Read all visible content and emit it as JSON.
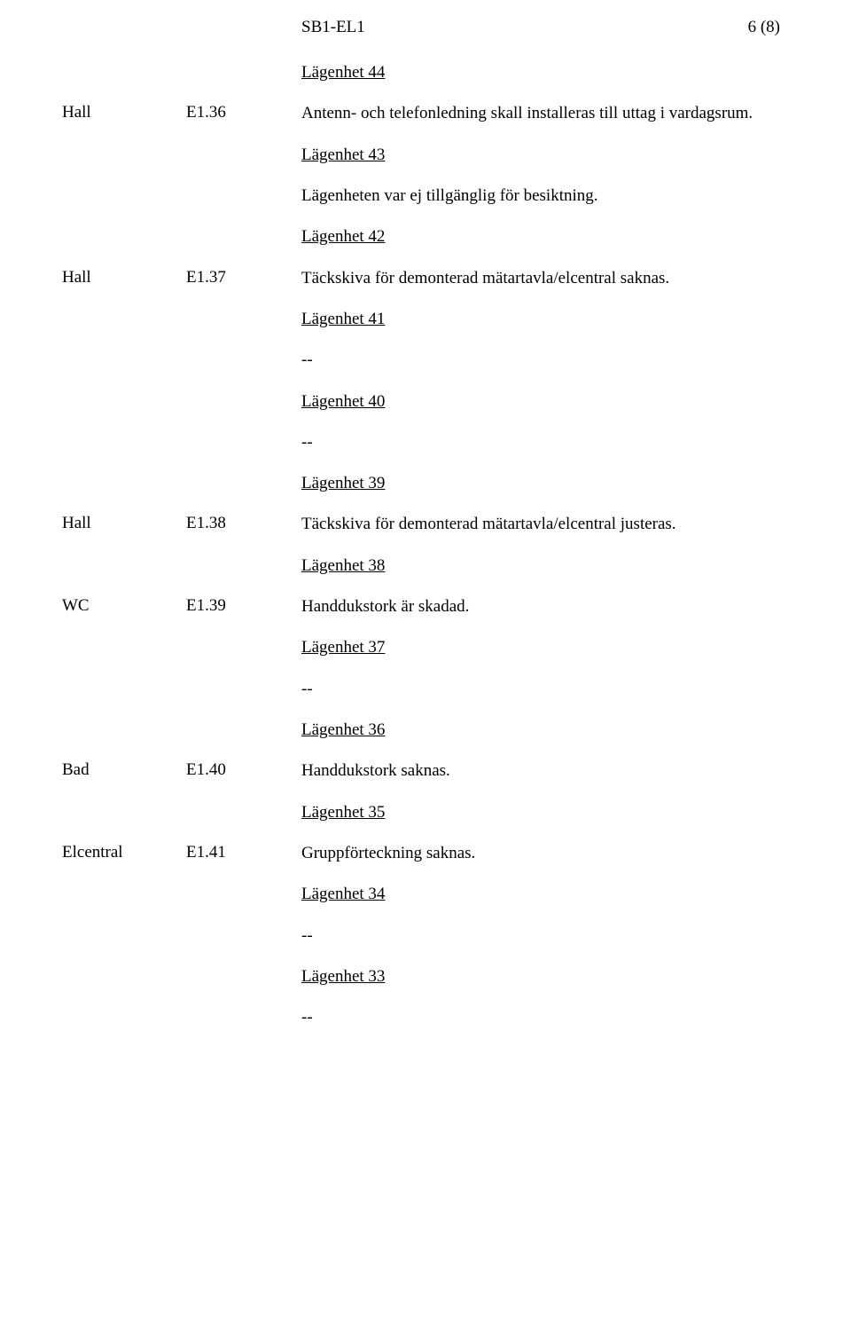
{
  "header": {
    "code": "SB1-EL1",
    "page": "6 (8)"
  },
  "sections": [
    {
      "location": "",
      "id": "",
      "heading": "Lägenhet 44",
      "body": ""
    },
    {
      "location": "Hall",
      "id": "E1.36",
      "heading": "",
      "body": "Antenn- och telefonledning skall installeras till uttag i vardagsrum."
    },
    {
      "location": "",
      "id": "",
      "heading": "Lägenhet 43",
      "body": ""
    },
    {
      "location": "",
      "id": "",
      "heading": "",
      "body": "Lägenheten var ej tillgänglig för besiktning."
    },
    {
      "location": "",
      "id": "",
      "heading": "Lägenhet 42",
      "body": ""
    },
    {
      "location": "Hall",
      "id": "E1.37",
      "heading": "",
      "body": "Täckskiva för demonterad mätartavla/elcentral saknas."
    },
    {
      "location": "",
      "id": "",
      "heading": "Lägenhet 41",
      "body": ""
    },
    {
      "location": "",
      "id": "",
      "heading": "",
      "body": "--"
    },
    {
      "location": "",
      "id": "",
      "heading": "Lägenhet 40",
      "body": ""
    },
    {
      "location": "",
      "id": "",
      "heading": "",
      "body": "--"
    },
    {
      "location": "",
      "id": "",
      "heading": "Lägenhet 39",
      "body": ""
    },
    {
      "location": "Hall",
      "id": "E1.38",
      "heading": "",
      "body": "Täckskiva för demonterad mätartavla/elcentral justeras."
    },
    {
      "location": "",
      "id": "",
      "heading": "Lägenhet 38",
      "body": ""
    },
    {
      "location": "WC",
      "id": "E1.39",
      "heading": "",
      "body": "Handdukstork är skadad."
    },
    {
      "location": "",
      "id": "",
      "heading": "Lägenhet 37",
      "body": ""
    },
    {
      "location": "",
      "id": "",
      "heading": "",
      "body": "--"
    },
    {
      "location": "",
      "id": "",
      "heading": "Lägenhet 36",
      "body": ""
    },
    {
      "location": "Bad",
      "id": "E1.40",
      "heading": "",
      "body": "Handdukstork saknas."
    },
    {
      "location": "",
      "id": "",
      "heading": "Lägenhet 35",
      "body": ""
    },
    {
      "location": "Elcentral",
      "id": "E1.41",
      "heading": "",
      "body": "Gruppförteckning saknas."
    },
    {
      "location": "",
      "id": "",
      "heading": "Lägenhet 34",
      "body": ""
    },
    {
      "location": "",
      "id": "",
      "heading": "",
      "body": "--"
    },
    {
      "location": "",
      "id": "",
      "heading": "Lägenhet 33",
      "body": ""
    },
    {
      "location": "",
      "id": "",
      "heading": "",
      "body": "--"
    }
  ]
}
